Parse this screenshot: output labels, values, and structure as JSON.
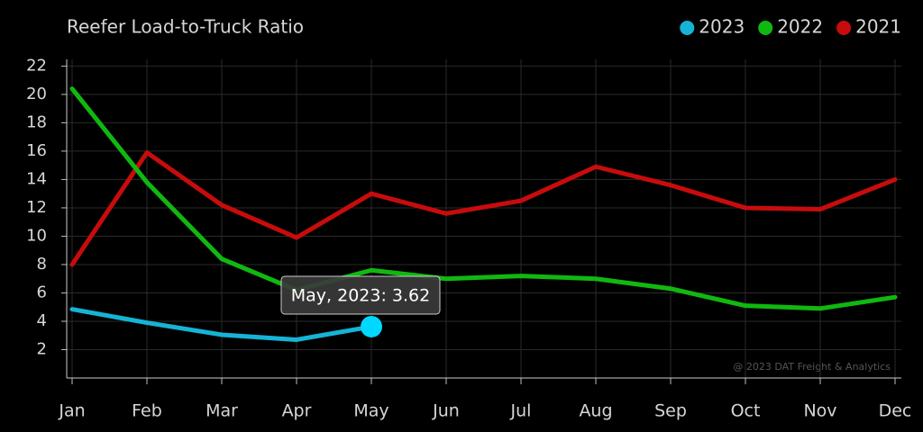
{
  "chart_data": {
    "type": "line",
    "title": "Reefer Load-to-Truck Ratio",
    "categories": [
      "Jan",
      "Feb",
      "Mar",
      "Apr",
      "May",
      "Jun",
      "Jul",
      "Aug",
      "Sep",
      "Oct",
      "Nov",
      "Dec"
    ],
    "series": [
      {
        "name": "2023",
        "color": "#15b4d6",
        "values": [
          4.85,
          3.9,
          3.05,
          2.7,
          3.62,
          null,
          null,
          null,
          null,
          null,
          null,
          null
        ]
      },
      {
        "name": "2022",
        "color": "#10b810",
        "values": [
          20.4,
          13.8,
          8.4,
          6.2,
          7.6,
          7.0,
          7.2,
          7.0,
          6.3,
          5.1,
          4.9,
          5.7
        ]
      },
      {
        "name": "2021",
        "color": "#c80c0c",
        "values": [
          8.0,
          15.9,
          12.2,
          9.9,
          13.0,
          11.6,
          12.5,
          14.9,
          13.6,
          12.0,
          11.9,
          14.0
        ]
      }
    ],
    "ylim": [
      0,
      22
    ],
    "yticks": [
      2,
      4,
      6,
      8,
      10,
      12,
      14,
      16,
      18,
      20,
      22
    ],
    "grid": true,
    "legend": "top-right",
    "tooltip": "May, 2023: 3.62",
    "credit": "@ 2023 DAT Freight & Analytics"
  }
}
